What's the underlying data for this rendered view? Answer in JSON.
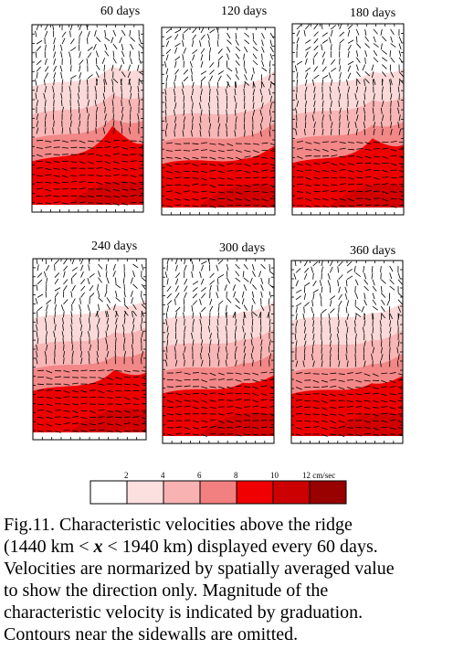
{
  "panels": [
    {
      "label": "60 days",
      "bands": [
        [
          "#ffffff",
          "#fbd9d9",
          "#f8b6b6",
          "#f28787",
          "#ed0000"
        ],
        "ridge"
      ],
      "hump": 0.55
    },
    {
      "label": "120 days",
      "bands": [
        [
          "#ffffff",
          "#fbd9d9",
          "#f8b6b6",
          "#f28787",
          "#ed0000"
        ],
        "flat"
      ],
      "hump": 0.0
    },
    {
      "label": "180 days",
      "bands": [
        [
          "#ffffff",
          "#fbd9d9",
          "#f8b6b6",
          "#f28787",
          "#ed0000"
        ],
        "ridge"
      ],
      "hump": 0.35
    },
    {
      "label": "240 days",
      "bands": [
        [
          "#ffffff",
          "#fbd9d9",
          "#f8b6b6",
          "#f28787",
          "#ed0000"
        ],
        "ridge"
      ],
      "hump": 0.3
    },
    {
      "label": "300 days",
      "bands": [
        [
          "#ffffff",
          "#fbd9d9",
          "#f8b6b6",
          "#f28787",
          "#ed0000"
        ],
        "flat"
      ],
      "hump": 0.1
    },
    {
      "label": "360 days",
      "bands": [
        [
          "#ffffff",
          "#fbd9d9",
          "#f8b6b6",
          "#f28787",
          "#ed0000"
        ],
        "flat"
      ],
      "hump": 0.1
    }
  ],
  "colorbar": {
    "colors": [
      "#ffffff",
      "#fce0e0",
      "#f9b2b2",
      "#f38080",
      "#f00000",
      "#cc0000",
      "#990000"
    ],
    "tick_labels": [
      "2",
      "4",
      "6",
      "8",
      "10",
      "12 cm/sec"
    ]
  },
  "caption": {
    "lines": [
      "Fig.11. Characteristic velocities above the ridge",
      "(1440 km < x < 1940 km) displayed every 60 days.",
      "Velocities are normarized by spatially averaged value",
      "to show the direction only. Magnitude of the",
      "characteristic velocity is indicated by graduation.",
      "Contours near the sidewalls are omitted."
    ],
    "line1_pre": "(1440 km < ",
    "line1_var": "x",
    "line1_post": " < 1940 km) displayed every 60 days."
  }
}
